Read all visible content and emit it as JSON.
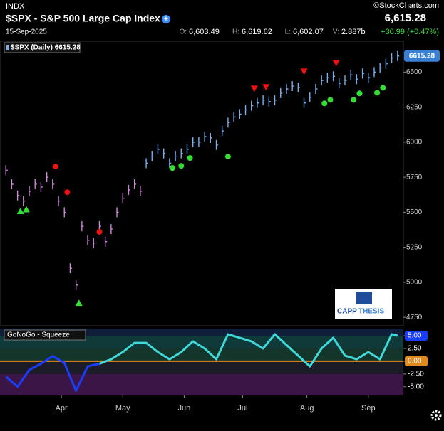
{
  "header": {
    "exchange": "INDX",
    "title": "$SPX - S&P 500 Large Cap Index",
    "date": "15-Sep-2025",
    "last": "6,615.28",
    "brand": "©StockCharts.com",
    "ohlc": [
      {
        "label": "O:",
        "value": "6,603.49"
      },
      {
        "label": "H:",
        "value": "6,619.62"
      },
      {
        "label": "L:",
        "value": "6,602.07"
      },
      {
        "label": "V:",
        "value": "2.887b"
      }
    ],
    "change": "+30.99 (+0.47%)"
  },
  "chart_data": [
    {
      "type": "bar",
      "title": "$SPX (Daily) 6615.28",
      "last_label": "6615.28",
      "logo": [
        "CAPP",
        "THESIS"
      ],
      "xlim": [
        -2,
        136
      ],
      "xticks": [
        {
          "value": 19,
          "label": "Apr"
        },
        {
          "value": 40,
          "label": "May"
        },
        {
          "value": 61,
          "label": "Jun"
        },
        {
          "value": 81,
          "label": "Jul"
        },
        {
          "value": 103,
          "label": "Aug"
        },
        {
          "value": 124,
          "label": "Sep"
        }
      ],
      "ylim": [
        4690,
        6720
      ],
      "yticks": [
        6500,
        6250,
        6000,
        5750,
        5500,
        5250,
        5000,
        4750
      ],
      "series": [
        {
          "color": "#c98ad6",
          "x": [
            0,
            2,
            4,
            6,
            8,
            10,
            12,
            14,
            16,
            18,
            20,
            22,
            24,
            26,
            28,
            30,
            32,
            34,
            36,
            38,
            40,
            42,
            44,
            46
          ],
          "values": [
            5800,
            5700,
            5620,
            5580,
            5650,
            5700,
            5680,
            5750,
            5700,
            5580,
            5500,
            5100,
            4980,
            5400,
            5300,
            5280,
            5400,
            5290,
            5380,
            5500,
            5600,
            5660,
            5700,
            5650
          ]
        },
        {
          "color": "#7aaee8",
          "x": [
            48,
            50,
            52,
            54,
            56,
            58,
            60,
            62,
            64,
            66,
            68,
            70,
            72,
            74,
            76,
            78,
            80,
            82,
            84,
            86,
            88,
            90,
            92,
            94,
            96,
            98,
            100,
            102,
            104,
            106,
            108,
            110,
            112,
            114,
            116,
            118,
            120,
            122,
            124,
            126,
            128,
            130,
            132,
            134
          ],
          "values": [
            5850,
            5900,
            5950,
            5920,
            5850,
            5900,
            5920,
            5950,
            6000,
            6000,
            6040,
            6030,
            5980,
            6080,
            6140,
            6180,
            6200,
            6230,
            6260,
            6280,
            6300,
            6290,
            6300,
            6350,
            6380,
            6400,
            6390,
            6280,
            6320,
            6380,
            6440,
            6460,
            6470,
            6420,
            6440,
            6480,
            6450,
            6490,
            6460,
            6500,
            6530,
            6560,
            6600,
            6615
          ]
        }
      ],
      "markers": [
        {
          "shape": "triangle-up",
          "color": "#33dd33",
          "x": [
            5,
            7,
            25
          ],
          "values": [
            5507,
            5520,
            4852
          ]
        },
        {
          "shape": "circle",
          "color": "#ee1111",
          "x": [
            17,
            21,
            32
          ],
          "values": [
            5826,
            5643,
            5360
          ]
        },
        {
          "shape": "circle",
          "color": "#33dd33",
          "x": [
            57,
            60,
            63,
            76,
            109,
            111,
            119,
            121,
            127,
            129
          ],
          "values": [
            5816,
            5831,
            5887,
            5897,
            6277,
            6302,
            6302,
            6348,
            6353,
            6388
          ]
        },
        {
          "shape": "triangle-down",
          "color": "#ee1111",
          "x": [
            85,
            89,
            102,
            113
          ],
          "values": [
            6383,
            6394,
            6505,
            6566
          ]
        }
      ]
    },
    {
      "type": "line",
      "title": "GoNoGo - Squeeze",
      "xlim": [
        -2,
        136
      ],
      "ylim": [
        -6.7,
        6.4
      ],
      "yticks": [
        {
          "value": 5,
          "label": "5.00"
        },
        {
          "value": 2.5,
          "label": "2.50"
        },
        {
          "value": 0,
          "label": "0.00"
        },
        {
          "value": -2.5,
          "label": "-2.50"
        },
        {
          "value": -5,
          "label": "-5.00"
        }
      ],
      "series": [
        {
          "color": "#1a3dff",
          "x": [
            0,
            4,
            8,
            12,
            16,
            20,
            24,
            28,
            32
          ],
          "values": [
            -3,
            -5,
            -1.7,
            -0.5,
            1,
            -0.3,
            -5.8,
            -1,
            -0.5
          ]
        },
        {
          "color": "#40d8d8",
          "x": [
            32,
            36,
            40,
            44,
            48,
            52,
            56,
            60,
            64,
            68,
            72,
            76,
            80,
            84,
            88,
            92,
            96,
            100,
            104,
            108,
            112,
            116,
            120,
            124,
            128,
            132,
            134
          ],
          "values": [
            -0.5,
            0.4,
            1.8,
            3.6,
            3.6,
            1.8,
            0.4,
            1.8,
            3.9,
            2.5,
            0.4,
            5.3,
            4.6,
            3.9,
            2.5,
            5.3,
            3.2,
            1.1,
            -1,
            2.5,
            4.6,
            1.1,
            0.4,
            1.8,
            0.4,
            5.3,
            5
          ]
        }
      ]
    }
  ]
}
